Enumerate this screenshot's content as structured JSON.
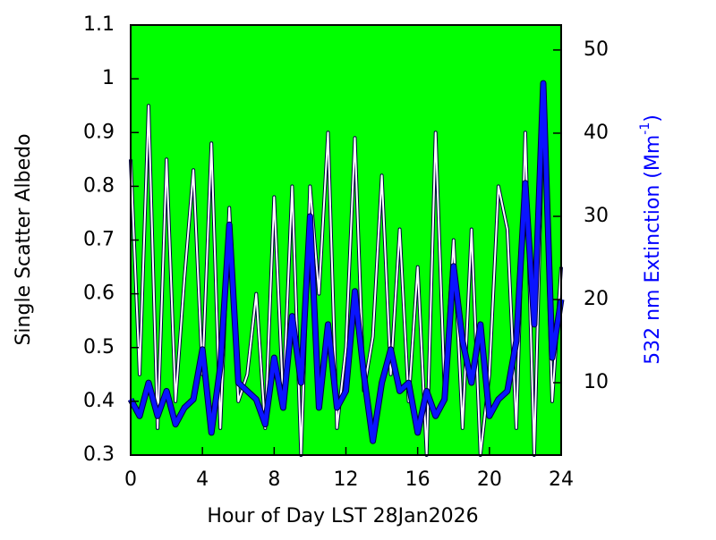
{
  "chart_data": {
    "type": "line",
    "xlabel": "Hour of Day LST 28Jan2026",
    "ylabel": "Single Scatter Albedo",
    "y2label": [
      "532 nm Extinction (Mm",
      "-1",
      ")"
    ],
    "background": "#00ff00",
    "xlim": [
      0,
      24
    ],
    "xticks": [
      0,
      4,
      8,
      12,
      16,
      20,
      24
    ],
    "ylim": [
      0.3,
      1.1
    ],
    "yticks": [
      0.3,
      0.4,
      0.5,
      0.6,
      0.7,
      0.8,
      0.9,
      1,
      1.1
    ],
    "y2lim": [
      1.3,
      53
    ],
    "y2ticks": [
      10,
      20,
      30,
      40,
      50
    ],
    "x": [
      0,
      0.5,
      1,
      1.5,
      2,
      2.5,
      3,
      3.5,
      4,
      4.5,
      5,
      5.5,
      6,
      6.5,
      7,
      7.5,
      8,
      8.5,
      9,
      9.5,
      10,
      10.5,
      11,
      11.5,
      12,
      12.5,
      13,
      13.5,
      14,
      14.5,
      15,
      15.5,
      16,
      16.5,
      17,
      17.5,
      18,
      18.5,
      19,
      19.5,
      20,
      20.5,
      21,
      21.5,
      22,
      22.5,
      23,
      23.5,
      24
    ],
    "series": [
      {
        "color": "#ffffff",
        "axis": "y",
        "values": [
          0.85,
          0.45,
          0.95,
          0.35,
          0.85,
          0.4,
          0.63,
          0.83,
          0.45,
          0.88,
          0.35,
          0.76,
          0.4,
          0.45,
          0.6,
          0.35,
          0.78,
          0.4,
          0.8,
          0.3,
          0.8,
          0.6,
          0.9,
          0.35,
          0.5,
          0.89,
          0.42,
          0.52,
          0.82,
          0.45,
          0.72,
          0.4,
          0.65,
          0.3,
          0.9,
          0.42,
          0.7,
          0.35,
          0.72,
          0.3,
          0.45,
          0.8,
          0.72,
          0.35,
          0.9,
          0.3,
          0.95,
          0.4,
          0.65
        ]
      },
      {
        "color": "#0a14ff",
        "axis": "y2",
        "values": [
          8,
          6,
          10,
          6,
          9,
          5,
          7,
          8,
          14,
          4,
          12,
          29,
          10,
          9,
          8,
          5,
          13,
          7,
          18,
          10,
          30,
          7,
          17,
          7,
          9,
          21,
          11,
          3,
          10,
          14,
          9,
          10,
          4,
          9,
          6,
          8,
          24,
          15,
          10,
          17,
          6,
          8,
          9,
          15,
          34,
          17,
          46,
          13,
          20
        ]
      }
    ]
  }
}
